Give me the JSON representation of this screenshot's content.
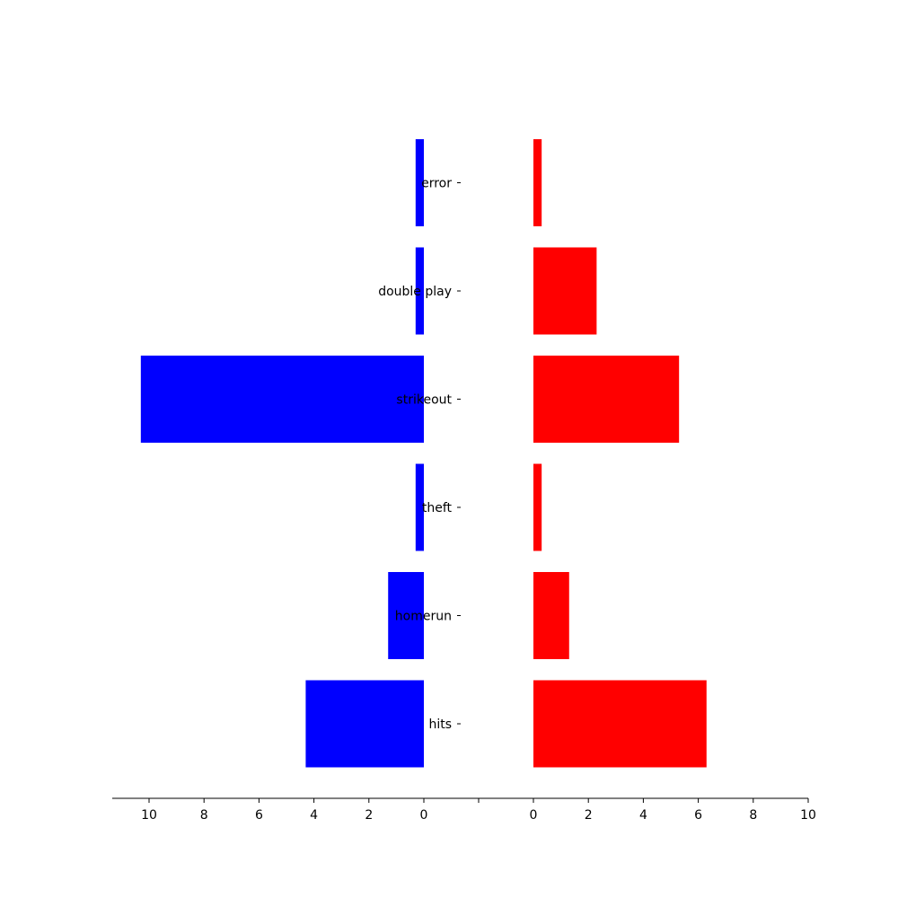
{
  "chart_data": {
    "type": "bar",
    "orientation": "horizontal",
    "layout": "back-to-back",
    "categories": [
      "hits",
      "homerun",
      "theft",
      "strikeout",
      "double play",
      "error"
    ],
    "series": [
      {
        "side": "left",
        "color": "#0000ff",
        "values": [
          4.3,
          1.3,
          0.3,
          10.3,
          0.3,
          0.3
        ]
      },
      {
        "side": "right",
        "color": "#ff0000",
        "values": [
          6.3,
          1.3,
          0.3,
          5.3,
          2.3,
          0.3
        ]
      }
    ],
    "left_axis": {
      "xlim": [
        11.3,
        0
      ],
      "ticks": [
        10,
        8,
        6,
        4,
        2,
        0
      ]
    },
    "right_axis": {
      "xlim": [
        0,
        10
      ],
      "ticks": [
        0,
        2,
        4,
        6,
        8,
        10
      ]
    },
    "title": "",
    "xlabel": "",
    "ylabel": "",
    "grid": false,
    "legend": "none"
  }
}
